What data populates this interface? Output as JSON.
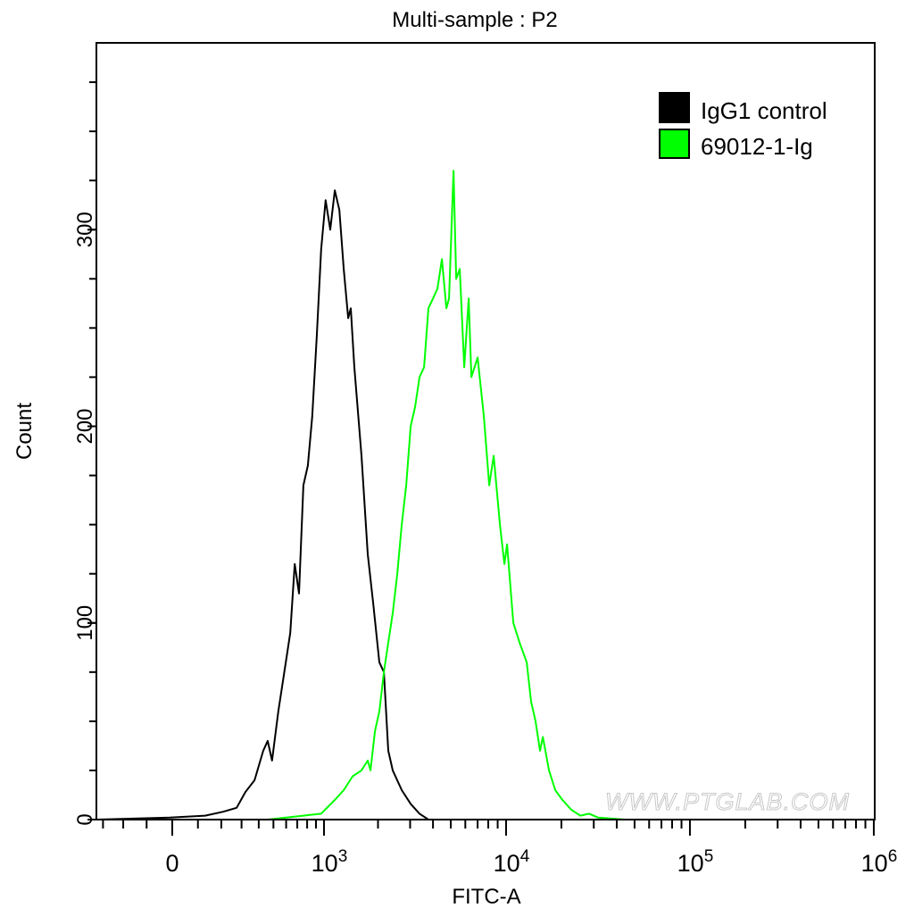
{
  "chart_data": {
    "type": "line",
    "title": "Multi-sample : P2",
    "xlabel": "FITC-A",
    "ylabel": "Count",
    "x_scale": "biexponential",
    "xlim": [
      -336,
      1000000
    ],
    "ylim": [
      0,
      395
    ],
    "x_ticks": [
      {
        "value": 0,
        "label": "0",
        "sup": ""
      },
      {
        "value": 1000,
        "label": "10",
        "sup": "3"
      },
      {
        "value": 10000,
        "label": "10",
        "sup": "4"
      },
      {
        "value": 100000,
        "label": "10",
        "sup": "5"
      },
      {
        "value": 1000000,
        "label": "10",
        "sup": "6"
      }
    ],
    "y_ticks": [
      0,
      100,
      200,
      300
    ],
    "grid": false,
    "legend": {
      "placement": "top-right"
    },
    "watermark": "WWW.PTGLAB.COM",
    "series": [
      {
        "name": "IgG1 control",
        "color": "#000000",
        "x": [
          -336,
          -10,
          130,
          209,
          274,
          321,
          374,
          429,
          459,
          490,
          537,
          597,
          636,
          676,
          717,
          761,
          808,
          856,
          908,
          964,
          1022,
          1085,
          1151,
          1221,
          1292,
          1368,
          1414,
          1481,
          1622,
          1757,
          1882,
          2035,
          2154,
          2277,
          2411,
          2699,
          3020,
          3378,
          3779,
          6000
        ],
        "y": [
          0,
          1,
          2,
          4,
          6,
          14,
          20,
          35,
          40,
          30,
          55,
          80,
          95,
          130,
          115,
          170,
          180,
          205,
          245,
          290,
          315,
          300,
          320,
          310,
          280,
          255,
          260,
          230,
          185,
          135,
          110,
          80,
          75,
          35,
          25,
          15,
          8,
          3,
          0,
          0
        ]
      },
      {
        "name": "69012-1-Ig",
        "color": "#00ff00",
        "x": [
          459,
          761,
          964,
          1151,
          1292,
          1448,
          1622,
          1757,
          1818,
          1925,
          2035,
          2154,
          2277,
          2411,
          2552,
          2699,
          2855,
          3020,
          3195,
          3378,
          3574,
          3779,
          4000,
          4229,
          4474,
          4731,
          4896,
          5178,
          5352,
          5597,
          5921,
          6261,
          6475,
          7004,
          7570,
          8100,
          8565,
          9260,
          9792,
          10129,
          10955,
          11842,
          12944,
          13678,
          14474,
          15300,
          15851,
          17136,
          18513,
          20257,
          22644,
          25337,
          28336,
          31671,
          44340
        ],
        "y": [
          0,
          2,
          3,
          10,
          15,
          22,
          25,
          30,
          25,
          45,
          55,
          75,
          90,
          105,
          125,
          150,
          170,
          200,
          210,
          225,
          230,
          260,
          265,
          270,
          285,
          260,
          265,
          330,
          275,
          280,
          230,
          265,
          225,
          235,
          205,
          170,
          185,
          150,
          130,
          140,
          100,
          90,
          80,
          60,
          50,
          35,
          42,
          25,
          15,
          10,
          5,
          2,
          3,
          1,
          0
        ]
      }
    ]
  }
}
